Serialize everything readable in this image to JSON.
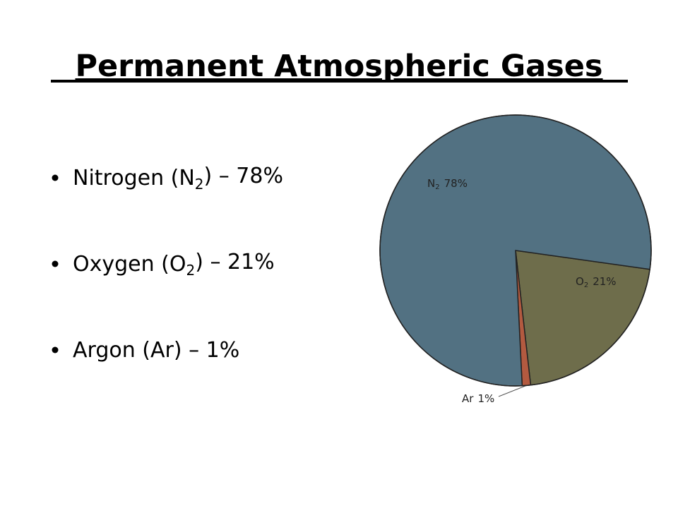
{
  "title": "Permanent Atmospheric Gases",
  "bullets": [
    "Nitrogen (N2) – 78%",
    "Oxygen (O2) – 21%",
    "Argon (Ar) – 1%"
  ],
  "chart_data": {
    "type": "pie",
    "categories": [
      "N2",
      "O2",
      "Ar"
    ],
    "values": [
      78,
      21,
      1
    ],
    "value_labels": [
      "78%",
      "21%",
      "1%"
    ],
    "colors": [
      "#527182",
      "#6e6d4b",
      "#b35a40"
    ]
  }
}
